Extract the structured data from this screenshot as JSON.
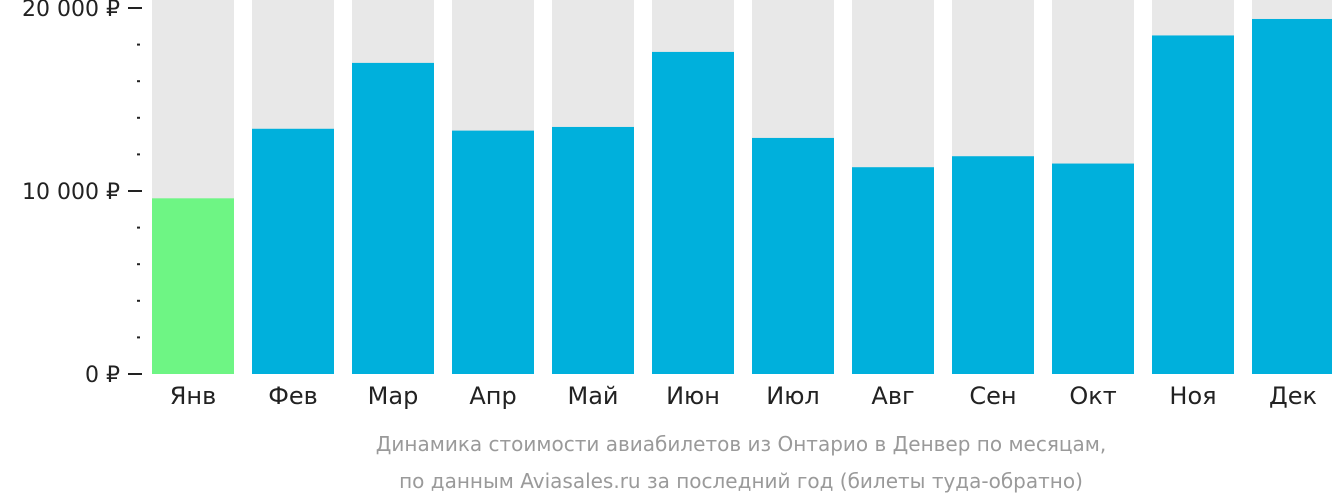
{
  "colors": {
    "bar": "#00b0dc",
    "bar_min": "#6ef584",
    "track": "#e8e8e8",
    "axis": "#222222",
    "caption": "#9a9a9a"
  },
  "caption": {
    "line1": "Динамика стоимости авиабилетов из Онтарио в Денвер по месяцам,",
    "line2": "по данным Aviasales.ru за последний год (билеты туда-обратно)"
  },
  "chart_data": {
    "type": "bar",
    "title": "",
    "xlabel": "",
    "ylabel": "",
    "categories": [
      "Янв",
      "Фев",
      "Мар",
      "Апр",
      "Май",
      "Июн",
      "Июл",
      "Авг",
      "Сен",
      "Окт",
      "Ноя",
      "Дек"
    ],
    "values": [
      9600,
      13400,
      17000,
      13300,
      13500,
      17600,
      12900,
      11300,
      11900,
      11500,
      18500,
      19400
    ],
    "highlight_index": 0,
    "ylim": [
      0,
      20000
    ],
    "yticks": [
      {
        "value": 0,
        "label": "0 ₽"
      },
      {
        "value": 10000,
        "label": "10 000 ₽"
      },
      {
        "value": 20000,
        "label": "20 000 ₽"
      }
    ],
    "minor_tick_step": 2000,
    "grid": false,
    "legend": "none"
  }
}
